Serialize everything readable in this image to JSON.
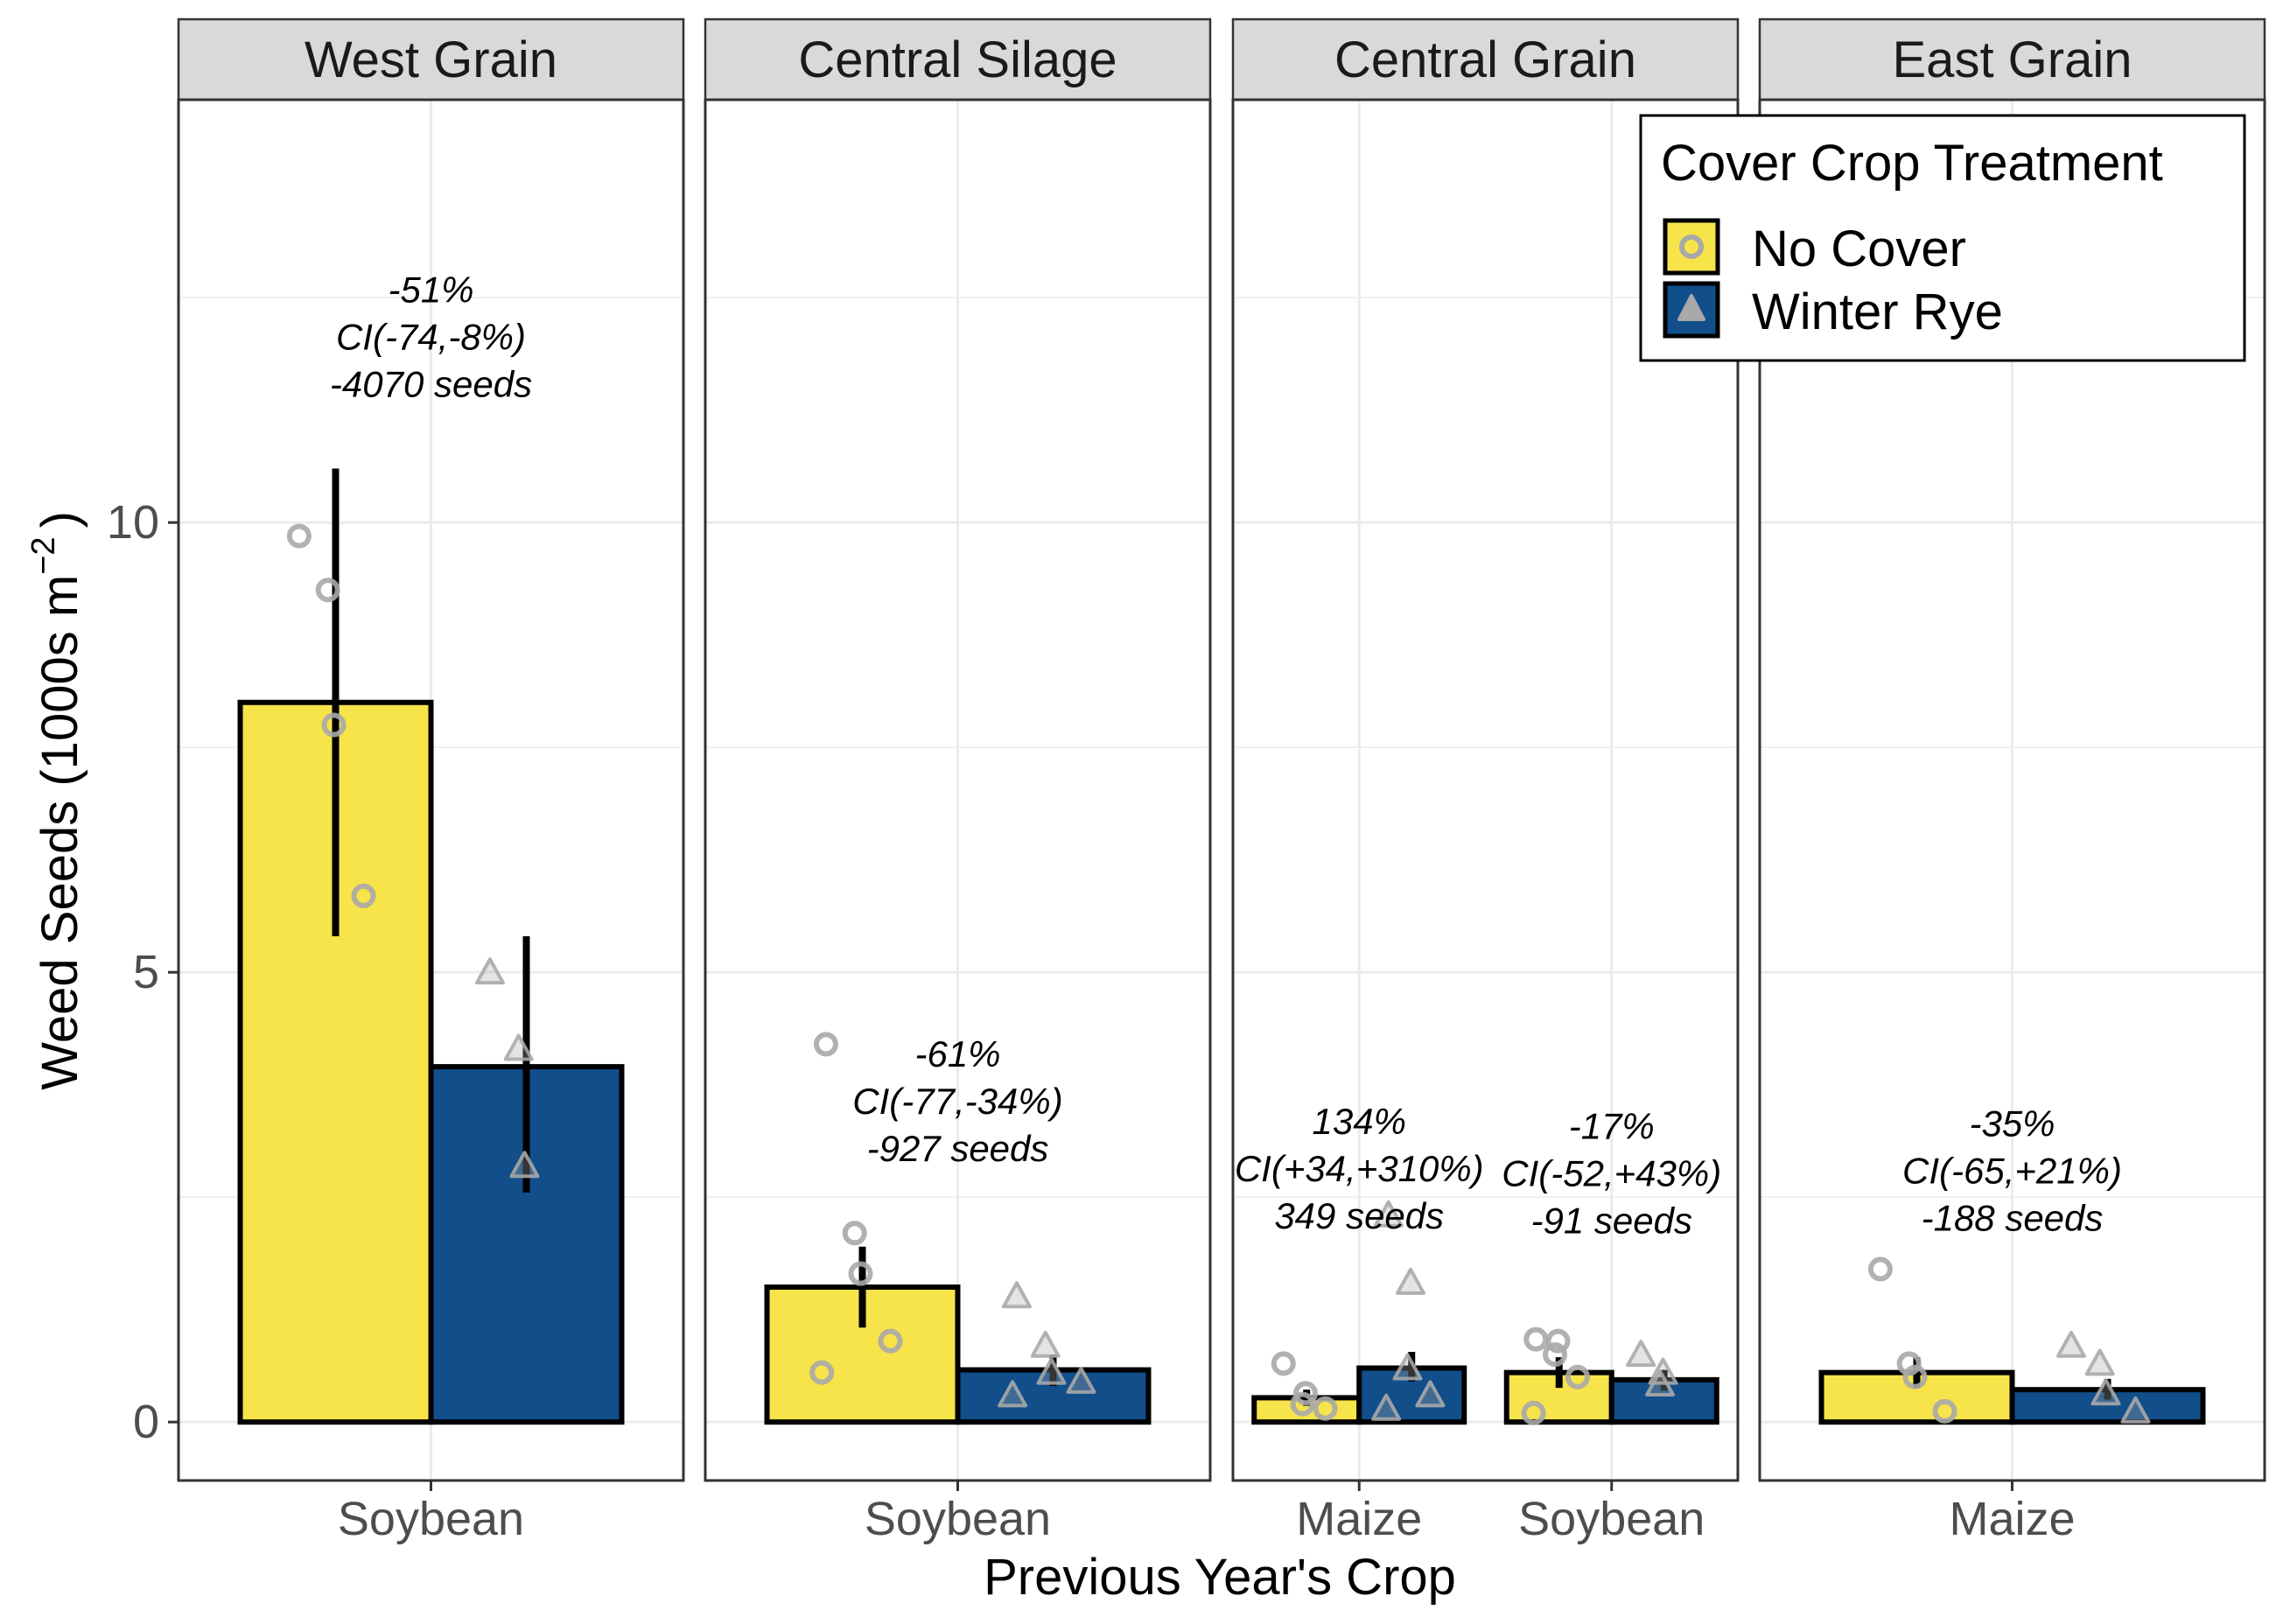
{
  "chart_data": {
    "type": "bar",
    "facets": [
      "West Grain",
      "Central Silage",
      "Central Grain",
      "East Grain"
    ],
    "xlabel": "Previous Year's Crop",
    "ylabel_main": "Weed Seeds (1000s m",
    "ylabel_sup": "−2",
    "ylabel_close": ")",
    "ylim": [
      -0.65,
      14.7
    ],
    "yticks": [
      0,
      5,
      10
    ],
    "ytick_labels": [
      "0",
      "5",
      "10"
    ],
    "grid": true,
    "legend": {
      "title": "Cover Crop Treatment",
      "position": "top-right",
      "entries": [
        {
          "label": "No Cover",
          "color": "#F7E34A",
          "marker": "circle"
        },
        {
          "label": "Winter Rye",
          "color": "#114E8A",
          "marker": "triangle"
        }
      ]
    },
    "colors": {
      "no_cover": "#F7E34A",
      "winter_rye": "#114E8A",
      "point": "#A9A9A9"
    },
    "groups": [
      {
        "facet": "West Grain",
        "crop": "Soybean",
        "no_cover": {
          "mean": 8.0,
          "ci": [
            5.4,
            10.6
          ],
          "points": [
            9.85,
            9.25,
            7.75,
            5.85
          ]
        },
        "winter_rye": {
          "mean": 3.95,
          "ci": [
            2.55,
            5.4
          ],
          "points": [
            5.0,
            4.15,
            2.85
          ]
        },
        "annotation": [
          "-51%",
          "CI(-74,-8%)",
          "-4070 seeds"
        ],
        "annotation_y": 12.45
      },
      {
        "facet": "Central Silage",
        "crop": "Soybean",
        "no_cover": {
          "mean": 1.5,
          "ci": [
            1.05,
            1.95
          ],
          "points": [
            4.2,
            2.1,
            1.65,
            0.9,
            0.55
          ]
        },
        "winter_rye": {
          "mean": 0.58,
          "ci": [
            0.4,
            0.75
          ],
          "points": [
            1.4,
            0.85,
            0.55,
            0.45,
            0.3
          ]
        },
        "annotation": [
          "-61%",
          "CI(-77,-34%)",
          "-927 seeds"
        ],
        "annotation_y": 3.95
      },
      {
        "facet": "Central Grain",
        "crop": "Maize",
        "no_cover": {
          "mean": 0.27,
          "ci": [
            0.18,
            0.36
          ],
          "points": [
            0.65,
            0.32,
            0.2,
            0.15
          ]
        },
        "winter_rye": {
          "mean": 0.6,
          "ci": [
            0.45,
            0.78
          ],
          "points": [
            2.3,
            1.55,
            0.6,
            0.3,
            0.15
          ]
        },
        "annotation": [
          "134%",
          "CI(+34,+310%)",
          "349 seeds"
        ],
        "annotation_y": 3.2
      },
      {
        "facet": "Central Grain",
        "crop": "Soybean",
        "no_cover": {
          "mean": 0.55,
          "ci": [
            0.38,
            0.72
          ],
          "points": [
            0.92,
            0.9,
            0.75,
            0.5,
            0.1
          ]
        },
        "winter_rye": {
          "mean": 0.47,
          "ci": [
            0.35,
            0.58
          ],
          "points": [
            0.75,
            0.55,
            0.42
          ]
        },
        "annotation": [
          "-17%",
          "CI(-52,+43%)",
          "-91 seeds"
        ],
        "annotation_y": 3.15
      },
      {
        "facet": "East Grain",
        "crop": "Maize",
        "no_cover": {
          "mean": 0.55,
          "ci": [
            0.38,
            0.72
          ],
          "points": [
            1.7,
            0.65,
            0.5,
            0.12
          ]
        },
        "winter_rye": {
          "mean": 0.36,
          "ci": [
            0.25,
            0.48
          ],
          "points": [
            0.85,
            0.65,
            0.32,
            0.12
          ]
        },
        "annotation": [
          "-35%",
          "CI(-65,+21%)",
          "-188 seeds"
        ],
        "annotation_y": 3.18
      }
    ]
  }
}
